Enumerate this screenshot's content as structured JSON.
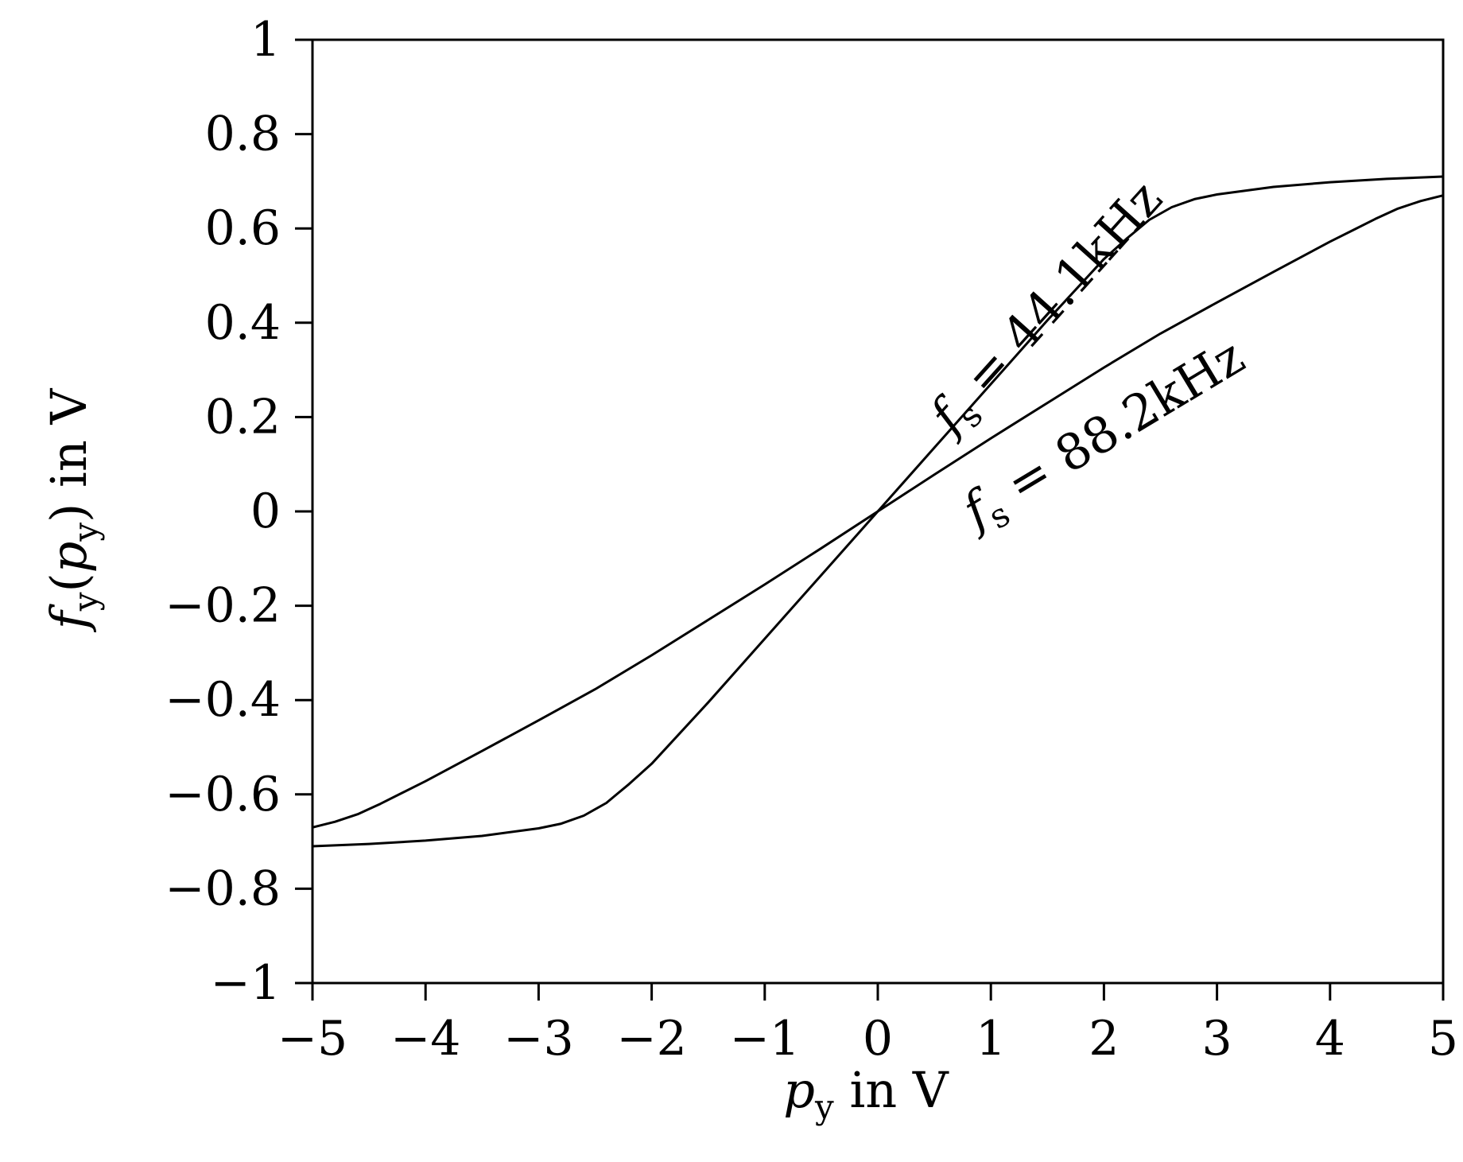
{
  "chart_data": {
    "type": "line",
    "xlabel": {
      "symbol": "p",
      "subscript": "y",
      "unit_text": " in V"
    },
    "ylabel": {
      "symbol": "f",
      "subscript": "y",
      "open_paren": "(",
      "arg_symbol": "p",
      "arg_subscript": "y",
      "close_paren": ")",
      "unit_text": " in V"
    },
    "xlim": [
      -5,
      5
    ],
    "ylim": [
      -1,
      1
    ],
    "grid": false,
    "x_ticks": [
      -5,
      -4,
      -3,
      -2,
      -1,
      0,
      1,
      2,
      3,
      4,
      5
    ],
    "x_tick_labels": [
      "−5",
      "−4",
      "−3",
      "−2",
      "−1",
      "0",
      "1",
      "2",
      "3",
      "4",
      "5"
    ],
    "y_ticks": [
      -1,
      -0.8,
      -0.6,
      -0.4,
      -0.2,
      0,
      0.2,
      0.4,
      0.6,
      0.8,
      1
    ],
    "y_tick_labels": [
      "−1",
      "−0.8",
      "−0.6",
      "−0.4",
      "−0.2",
      "0",
      "0.2",
      "0.4",
      "0.6",
      "0.8",
      "1"
    ],
    "series": [
      {
        "label": {
          "symbol": "f",
          "subscript": "s",
          "text": " = 44.1kHz"
        },
        "color": "#000000",
        "x": [
          -5,
          -4.5,
          -4,
          -3.5,
          -3,
          -2.8,
          -2.6,
          -2.4,
          -2.3,
          -2.2,
          -2,
          -1.5,
          -1,
          -0.5,
          0,
          0.5,
          1,
          1.5,
          2,
          2.2,
          2.3,
          2.4,
          2.6,
          2.8,
          3,
          3.5,
          4,
          4.5,
          5
        ],
        "y": [
          -0.71,
          -0.705,
          -0.698,
          -0.688,
          -0.672,
          -0.662,
          -0.645,
          -0.618,
          -0.598,
          -0.578,
          -0.535,
          -0.405,
          -0.27,
          -0.135,
          0,
          0.135,
          0.27,
          0.405,
          0.535,
          0.578,
          0.598,
          0.618,
          0.645,
          0.662,
          0.672,
          0.688,
          0.698,
          0.705,
          0.71
        ]
      },
      {
        "label": {
          "symbol": "f",
          "subscript": "s",
          "text": " = 88.2kHz"
        },
        "color": "#000000",
        "x": [
          -5,
          -4.8,
          -4.6,
          -4.4,
          -4.2,
          -4,
          -3.5,
          -3,
          -2.5,
          -2,
          -1.5,
          -1,
          -0.5,
          0,
          0.5,
          1,
          1.5,
          2,
          2.5,
          3,
          3.5,
          4,
          4.2,
          4.4,
          4.6,
          4.8,
          5
        ],
        "y": [
          -0.67,
          -0.658,
          -0.642,
          -0.62,
          -0.596,
          -0.572,
          -0.508,
          -0.443,
          -0.377,
          -0.305,
          -0.23,
          -0.155,
          -0.078,
          0,
          0.078,
          0.155,
          0.23,
          0.305,
          0.377,
          0.443,
          0.508,
          0.572,
          0.596,
          0.62,
          0.642,
          0.658,
          0.67
        ]
      }
    ]
  }
}
